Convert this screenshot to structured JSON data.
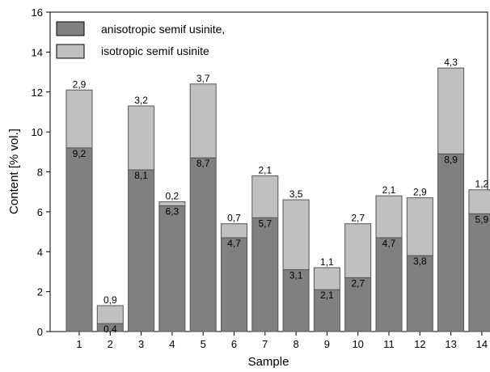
{
  "chart_data": {
    "type": "bar",
    "stacked": true,
    "xlabel": "Sample",
    "ylabel": "Content [% vol.]",
    "ylim": [
      0,
      16
    ],
    "yticks": [
      0,
      2,
      4,
      6,
      8,
      10,
      12,
      14,
      16
    ],
    "categories": [
      "1",
      "2",
      "3",
      "4",
      "5",
      "6",
      "7",
      "8",
      "9",
      "10",
      "11",
      "12",
      "13",
      "14"
    ],
    "series": [
      {
        "name": "anisotropic semif usinite,",
        "color": "#808080",
        "values": [
          9.2,
          0.4,
          8.1,
          6.3,
          8.7,
          4.7,
          5.7,
          3.1,
          2.1,
          2.7,
          4.7,
          3.8,
          8.9,
          5.9
        ],
        "labels": [
          "9,2",
          "0,4",
          "8,1",
          "6,3",
          "8,7",
          "4,7",
          "5,7",
          "3,1",
          "2,1",
          "2,7",
          "4,7",
          "3,8",
          "8,9",
          "5,9"
        ]
      },
      {
        "name": "isotropic semif usinite",
        "color": "#c0c0c0",
        "values": [
          2.9,
          0.9,
          3.2,
          0.2,
          3.7,
          0.7,
          2.1,
          3.5,
          1.1,
          2.7,
          2.1,
          2.9,
          4.3,
          1.2
        ],
        "labels": [
          "2,9",
          "0,9",
          "3,2",
          "0,2",
          "3,7",
          "0,7",
          "2,1",
          "3,5",
          "1,1",
          "2,7",
          "2,1",
          "2,9",
          "4,3",
          "1,2"
        ]
      }
    ],
    "grid": false,
    "legend_position": "top-left"
  }
}
